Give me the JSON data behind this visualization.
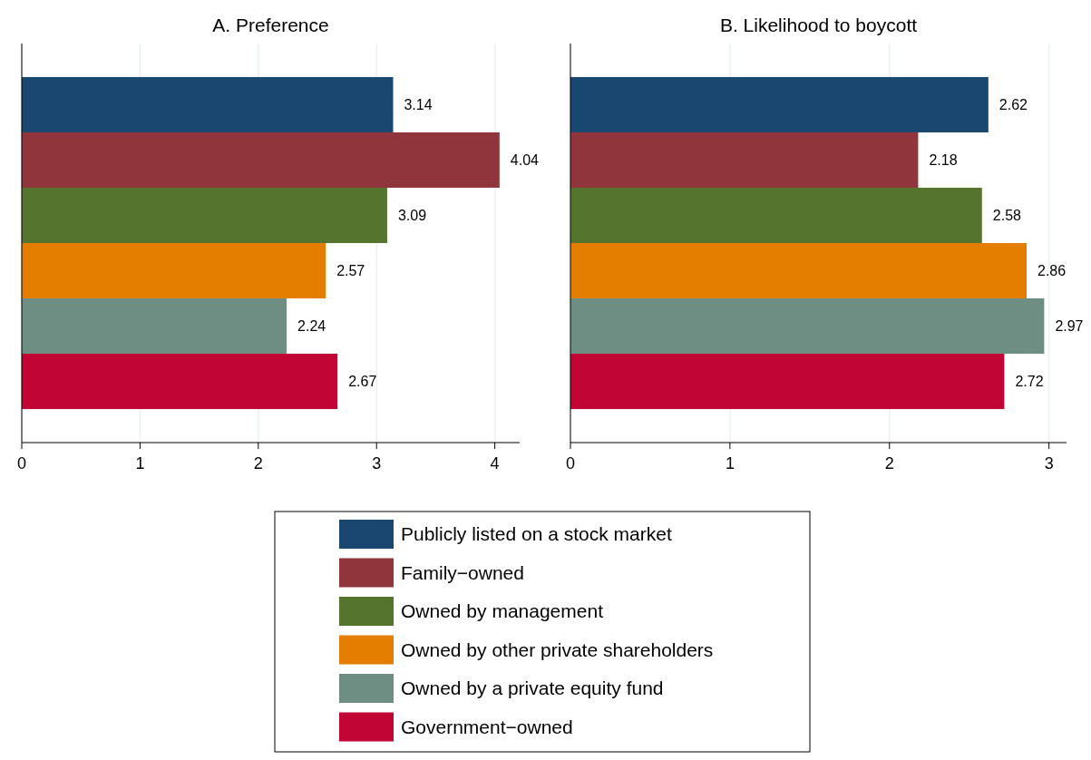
{
  "chart_data": [
    {
      "type": "bar",
      "orientation": "horizontal",
      "title": "A. Preference",
      "categories": [
        null
      ],
      "xlim": [
        0,
        4.21
      ],
      "xticks": [
        0,
        1,
        2,
        3,
        4
      ],
      "grid": "x",
      "data_labels": true,
      "legend": "bottom",
      "series": [
        {
          "name": "Publicly listed on a stock market",
          "color": "#1a476f",
          "values": [
            3.14
          ]
        },
        {
          "name": "Family−owned",
          "color": "#90353b",
          "values": [
            4.04
          ]
        },
        {
          "name": "Owned by management",
          "color": "#55752f",
          "values": [
            3.09
          ]
        },
        {
          "name": "Owned by other private shareholders",
          "color": "#e37e00",
          "values": [
            2.57
          ]
        },
        {
          "name": "Owned by a private equity fund",
          "color": "#6e8e84",
          "values": [
            2.24
          ]
        },
        {
          "name": "Government−owned",
          "color": "#c10534",
          "values": [
            2.67
          ]
        }
      ]
    },
    {
      "type": "bar",
      "orientation": "horizontal",
      "title": "B. Likelihood to boycott",
      "categories": [
        null
      ],
      "xlim": [
        0,
        3.11
      ],
      "xticks": [
        0,
        1,
        2,
        3
      ],
      "grid": "x",
      "data_labels": true,
      "series": [
        {
          "color": "#1a476f",
          "values": [
            2.62
          ]
        },
        {
          "color": "#90353b",
          "values": [
            2.18
          ]
        },
        {
          "color": "#55752f",
          "values": [
            2.58
          ]
        },
        {
          "color": "#e37e00",
          "values": [
            2.86
          ]
        },
        {
          "color": "#6e8e84",
          "values": [
            2.97
          ]
        },
        {
          "color": "#c10534",
          "values": [
            2.72
          ]
        }
      ]
    }
  ]
}
